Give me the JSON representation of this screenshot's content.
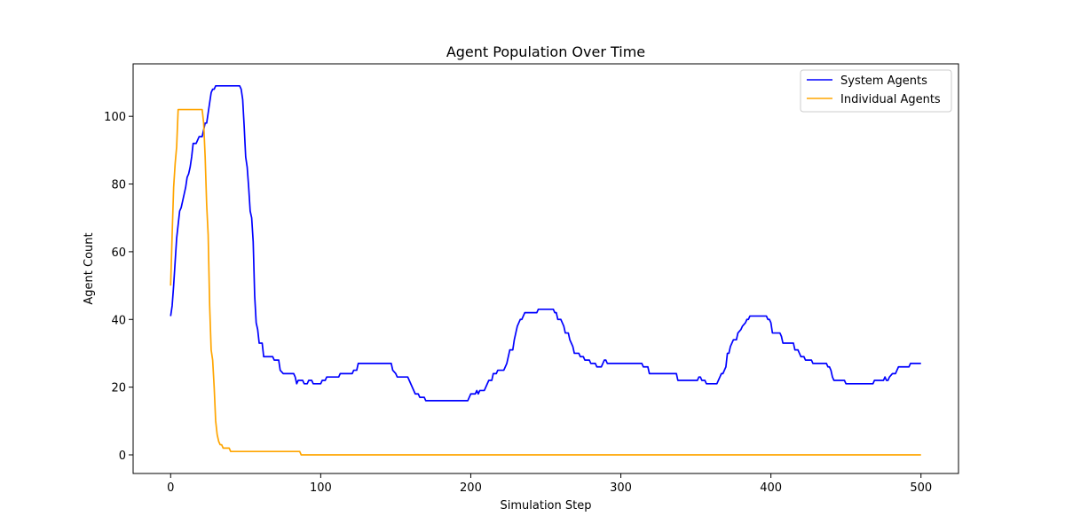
{
  "chart_data": {
    "type": "line",
    "title": "Agent Population Over Time",
    "xlabel": "Simulation Step",
    "ylabel": "Agent Count",
    "xlim": [
      -25,
      525
    ],
    "ylim": [
      -5.5,
      115.5
    ],
    "xticks": [
      0,
      100,
      200,
      300,
      400,
      500
    ],
    "yticks": [
      0,
      20,
      40,
      60,
      80,
      100
    ],
    "grid": false,
    "legend": "top-right",
    "series": [
      {
        "name": "System Agents",
        "color": "#0000ff",
        "points": [
          [
            0,
            41
          ],
          [
            1,
            44
          ],
          [
            2,
            50
          ],
          [
            3,
            57
          ],
          [
            4,
            64
          ],
          [
            5,
            68
          ],
          [
            6,
            72
          ],
          [
            7,
            73
          ],
          [
            8,
            75
          ],
          [
            9,
            77
          ],
          [
            10,
            79
          ],
          [
            11,
            82
          ],
          [
            12,
            83
          ],
          [
            13,
            85
          ],
          [
            14,
            88
          ],
          [
            15,
            92
          ],
          [
            17,
            92
          ],
          [
            19,
            94
          ],
          [
            21,
            94
          ],
          [
            23,
            98
          ],
          [
            24,
            98
          ],
          [
            25,
            101
          ],
          [
            26,
            104
          ],
          [
            27,
            107
          ],
          [
            28,
            108
          ],
          [
            29,
            108
          ],
          [
            30,
            109
          ],
          [
            46,
            109
          ],
          [
            47,
            108
          ],
          [
            48,
            105
          ],
          [
            49,
            97
          ],
          [
            50,
            88
          ],
          [
            51,
            85
          ],
          [
            52,
            79
          ],
          [
            53,
            72
          ],
          [
            54,
            70
          ],
          [
            55,
            63
          ],
          [
            56,
            47
          ],
          [
            57,
            39
          ],
          [
            58,
            37
          ],
          [
            59,
            33
          ],
          [
            61,
            33
          ],
          [
            62,
            29
          ],
          [
            68,
            29
          ],
          [
            69,
            28
          ],
          [
            72,
            28
          ],
          [
            73,
            25
          ],
          [
            75,
            24
          ],
          [
            82,
            24
          ],
          [
            83,
            23
          ],
          [
            84,
            21
          ],
          [
            85,
            22
          ],
          [
            88,
            22
          ],
          [
            89,
            21
          ],
          [
            91,
            21
          ],
          [
            92,
            22
          ],
          [
            94,
            22
          ],
          [
            95,
            21
          ],
          [
            100,
            21
          ],
          [
            101,
            22
          ],
          [
            103,
            22
          ],
          [
            104,
            23
          ],
          [
            112,
            23
          ],
          [
            113,
            24
          ],
          [
            121,
            24
          ],
          [
            122,
            25
          ],
          [
            124,
            25
          ],
          [
            125,
            27
          ],
          [
            147,
            27
          ],
          [
            148,
            25
          ],
          [
            150,
            24
          ],
          [
            151,
            23
          ],
          [
            158,
            23
          ],
          [
            159,
            22
          ],
          [
            161,
            20
          ],
          [
            163,
            18
          ],
          [
            165,
            18
          ],
          [
            166,
            17
          ],
          [
            169,
            17
          ],
          [
            170,
            16
          ],
          [
            198,
            16
          ],
          [
            199,
            17
          ],
          [
            200,
            18
          ],
          [
            203,
            18
          ],
          [
            204,
            19
          ],
          [
            205,
            18
          ],
          [
            206,
            19
          ],
          [
            209,
            19
          ],
          [
            210,
            20
          ],
          [
            212,
            22
          ],
          [
            214,
            22
          ],
          [
            215,
            24
          ],
          [
            217,
            24
          ],
          [
            218,
            25
          ],
          [
            222,
            25
          ],
          [
            223,
            26
          ],
          [
            224,
            27
          ],
          [
            226,
            31
          ],
          [
            228,
            31
          ],
          [
            229,
            34
          ],
          [
            230,
            36
          ],
          [
            231,
            38
          ],
          [
            232,
            39
          ],
          [
            233,
            40
          ],
          [
            234,
            40
          ],
          [
            235,
            41
          ],
          [
            236,
            42
          ],
          [
            244,
            42
          ],
          [
            245,
            43
          ],
          [
            255,
            43
          ],
          [
            256,
            42
          ],
          [
            257,
            42
          ],
          [
            258,
            40
          ],
          [
            260,
            40
          ],
          [
            261,
            39
          ],
          [
            262,
            38
          ],
          [
            263,
            36
          ],
          [
            265,
            36
          ],
          [
            266,
            34
          ],
          [
            267,
            33
          ],
          [
            268,
            32
          ],
          [
            269,
            30
          ],
          [
            272,
            30
          ],
          [
            273,
            29
          ],
          [
            275,
            29
          ],
          [
            276,
            28
          ],
          [
            279,
            28
          ],
          [
            280,
            27
          ],
          [
            283,
            27
          ],
          [
            284,
            26
          ],
          [
            287,
            26
          ],
          [
            288,
            27
          ],
          [
            289,
            28
          ],
          [
            290,
            28
          ],
          [
            291,
            27
          ],
          [
            314,
            27
          ],
          [
            315,
            26
          ],
          [
            318,
            26
          ],
          [
            319,
            24
          ],
          [
            337,
            24
          ],
          [
            338,
            22
          ],
          [
            351,
            22
          ],
          [
            352,
            23
          ],
          [
            353,
            23
          ],
          [
            354,
            22
          ],
          [
            356,
            22
          ],
          [
            357,
            21
          ],
          [
            364,
            21
          ],
          [
            365,
            22
          ],
          [
            366,
            23
          ],
          [
            367,
            24
          ],
          [
            368,
            24
          ],
          [
            370,
            26
          ],
          [
            371,
            30
          ],
          [
            372,
            30
          ],
          [
            373,
            32
          ],
          [
            374,
            33
          ],
          [
            375,
            34
          ],
          [
            377,
            34
          ],
          [
            378,
            36
          ],
          [
            380,
            37
          ],
          [
            381,
            38
          ],
          [
            383,
            39
          ],
          [
            384,
            40
          ],
          [
            385,
            40
          ],
          [
            386,
            41
          ],
          [
            397,
            41
          ],
          [
            398,
            40
          ],
          [
            399,
            40
          ],
          [
            400,
            39
          ],
          [
            401,
            36
          ],
          [
            406,
            36
          ],
          [
            407,
            35
          ],
          [
            408,
            33
          ],
          [
            415,
            33
          ],
          [
            416,
            31
          ],
          [
            418,
            31
          ],
          [
            419,
            30
          ],
          [
            420,
            29
          ],
          [
            422,
            29
          ],
          [
            423,
            28
          ],
          [
            427,
            28
          ],
          [
            428,
            27
          ],
          [
            437,
            27
          ],
          [
            438,
            26
          ],
          [
            439,
            26
          ],
          [
            440,
            25
          ],
          [
            441,
            23
          ],
          [
            442,
            22
          ],
          [
            449,
            22
          ],
          [
            450,
            21
          ],
          [
            468,
            21
          ],
          [
            469,
            22
          ],
          [
            475,
            22
          ],
          [
            476,
            23
          ],
          [
            477,
            22
          ],
          [
            478,
            22
          ],
          [
            479,
            23
          ],
          [
            481,
            24
          ],
          [
            483,
            24
          ],
          [
            484,
            25
          ],
          [
            485,
            26
          ],
          [
            492,
            26
          ],
          [
            493,
            27
          ],
          [
            500,
            27
          ]
        ]
      },
      {
        "name": "Individual Agents",
        "color": "#ffa500",
        "points": [
          [
            0,
            50
          ],
          [
            1,
            65
          ],
          [
            2,
            79
          ],
          [
            3,
            86
          ],
          [
            4,
            91
          ],
          [
            5,
            102
          ],
          [
            21,
            102
          ],
          [
            22,
            98
          ],
          [
            23,
            88
          ],
          [
            24,
            74
          ],
          [
            25,
            65
          ],
          [
            26,
            44
          ],
          [
            27,
            31
          ],
          [
            28,
            28
          ],
          [
            29,
            20
          ],
          [
            30,
            10
          ],
          [
            31,
            6
          ],
          [
            32,
            4
          ],
          [
            33,
            3
          ],
          [
            34,
            3
          ],
          [
            35,
            2
          ],
          [
            39,
            2
          ],
          [
            40,
            1
          ],
          [
            86,
            1
          ],
          [
            87,
            0
          ],
          [
            500,
            0
          ]
        ]
      }
    ]
  }
}
